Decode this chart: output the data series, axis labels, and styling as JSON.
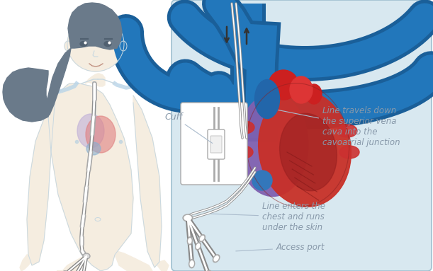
{
  "bg_color": "#ffffff",
  "panel_bg": "#d8e8f0",
  "panel_border": "#a0c0d0",
  "label_color": "#8899aa",
  "label_line_color": "#aabbcc",
  "label1": "Line travels down\nthe superior vena\ncava into the\ncavoatrial junction",
  "label2": "Line enters the\nchest and runs\nunder the skin",
  "label3": "Access port",
  "label4": "Cuff",
  "vessel_blue": "#2277bb",
  "vessel_blue_dark": "#1a5f99",
  "skin_color": "#f5ede0",
  "skin_outline": "#c8d8e0",
  "hair_color": "#6a7a8a",
  "vein_color": "#b8d4e8",
  "heart_red": "#c83030",
  "heart_dark_red": "#8b2020",
  "heart_purple": "#7050a0",
  "heart_blue": "#2266aa",
  "catheter_gray": "#909090",
  "catheter_light": "#e8e8e8"
}
